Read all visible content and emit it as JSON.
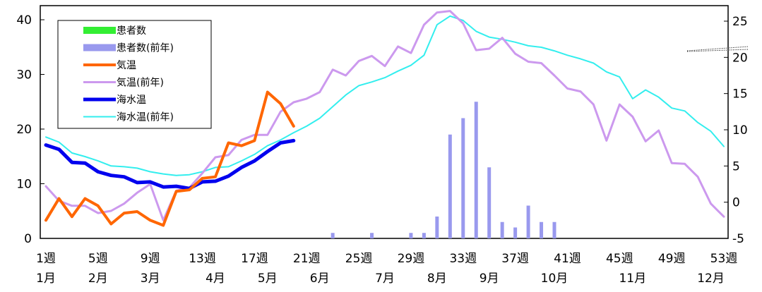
{
  "chart_data": {
    "type": "line",
    "x_ticks": [
      {
        "week": 1,
        "label": "1週"
      },
      {
        "week": 5,
        "label": "5週"
      },
      {
        "week": 9,
        "label": "9週"
      },
      {
        "week": 13,
        "label": "13週"
      },
      {
        "week": 17,
        "label": "17週"
      },
      {
        "week": 21,
        "label": "21週"
      },
      {
        "week": 25,
        "label": "25週"
      },
      {
        "week": 29,
        "label": "29週"
      },
      {
        "week": 33,
        "label": "33週"
      },
      {
        "week": 37,
        "label": "37週"
      },
      {
        "week": 41,
        "label": "41週"
      },
      {
        "week": 45,
        "label": "45週"
      },
      {
        "week": 49,
        "label": "49週"
      },
      {
        "week": 53,
        "label": "53週"
      }
    ],
    "month_labels": [
      {
        "week": 1,
        "label": "1月"
      },
      {
        "week": 5,
        "label": "2月"
      },
      {
        "week": 9,
        "label": "3月"
      },
      {
        "week": 14,
        "label": "4月"
      },
      {
        "week": 18,
        "label": "5月"
      },
      {
        "week": 22,
        "label": "6月"
      },
      {
        "week": 27,
        "label": "7月"
      },
      {
        "week": 31,
        "label": "8月"
      },
      {
        "week": 35,
        "label": "9月"
      },
      {
        "week": 40,
        "label": "10月"
      },
      {
        "week": 46,
        "label": "11月"
      },
      {
        "week": 52,
        "label": "12月"
      }
    ],
    "x_range": [
      1,
      53
    ],
    "y_left": {
      "range": [
        0,
        40
      ],
      "ticks": [
        "0",
        "10",
        "20",
        "30",
        "40"
      ]
    },
    "y_right": {
      "range": [
        -5,
        25
      ],
      "ticks": [
        "-5",
        "0",
        "5",
        "10",
        "15",
        "20",
        "25"
      ]
    },
    "legend": [
      "患者数",
      "患者数(前年)",
      "気温",
      "気温(前年)",
      "海水温",
      "海水温(前年)"
    ],
    "series": [
      {
        "name": "患者数",
        "kind": "bar",
        "axis": "left",
        "color": "#33ee33",
        "points": []
      },
      {
        "name": "患者数(前年)",
        "kind": "bar",
        "axis": "left",
        "color": "#9999ee",
        "points": [
          [
            23,
            1
          ],
          [
            26,
            1
          ],
          [
            29,
            1
          ],
          [
            30,
            1
          ],
          [
            31,
            4
          ],
          [
            32,
            19
          ],
          [
            33,
            22
          ],
          [
            34,
            25
          ],
          [
            35,
            13
          ],
          [
            36,
            3
          ],
          [
            37,
            2
          ],
          [
            38,
            6
          ],
          [
            39,
            3
          ],
          [
            40,
            3
          ]
        ]
      },
      {
        "name": "気温",
        "kind": "line",
        "axis": "right",
        "color": "#ff6600",
        "width": 4,
        "values": [
          -2.5,
          0.5,
          -2,
          0.5,
          -0.5,
          -3,
          -1.5,
          -1.3,
          -2.5,
          -3.2,
          1.5,
          1.7,
          3.3,
          3.5,
          8.2,
          7.8,
          8.5,
          15.2,
          13.6,
          10.5
        ]
      },
      {
        "name": "気温(前年)",
        "kind": "line",
        "axis": "right",
        "color": "#cc99ee",
        "width": 3,
        "values": [
          2.2,
          0.2,
          -0.5,
          -0.5,
          -1.5,
          -1.2,
          -0.2,
          1.3,
          2.5,
          -2.5,
          1.6,
          2,
          4,
          6.2,
          6.5,
          8.6,
          9.3,
          9.3,
          12.5,
          13.8,
          14.3,
          15.2,
          18.3,
          17.5,
          19.5,
          20.2,
          18.8,
          21.5,
          20.6,
          24.5,
          26.2,
          26.4,
          24.7,
          21,
          21.2,
          22.7,
          20.5,
          19.4,
          19.2,
          17.5,
          15.7,
          15.3,
          13.5,
          8.5,
          13.5,
          11.8,
          8.4,
          9.9,
          5.4,
          5.3,
          3.5,
          -0.2,
          -2
        ]
      },
      {
        "name": "海水温",
        "kind": "line",
        "axis": "right",
        "color": "#0000ee",
        "width": 5,
        "values": [
          7.9,
          7.3,
          5.5,
          5.4,
          4.2,
          3.7,
          3.5,
          2.7,
          2.8,
          2.1,
          2.2,
          1.9,
          2.8,
          2.9,
          3.6,
          4.8,
          5.7,
          7,
          8.2,
          8.5
        ]
      },
      {
        "name": "海水温(前年)",
        "kind": "line",
        "axis": "right",
        "color": "#33eeee",
        "width": 2,
        "values": [
          9,
          8.3,
          6.8,
          6.3,
          5.7,
          5,
          4.9,
          4.7,
          4.2,
          3.9,
          3.7,
          3.8,
          4.2,
          4.8,
          4.9,
          5.7,
          6.6,
          7.8,
          8.6,
          9.6,
          10.5,
          11.6,
          13.2,
          14.8,
          16.1,
          16.6,
          17.2,
          18.1,
          18.9,
          20.3,
          24.5,
          25.7,
          25.1,
          23.6,
          22.8,
          22.5,
          22.1,
          21.6,
          21.4,
          20.9,
          20.3,
          19.8,
          19.2,
          18,
          17.3,
          14.3,
          15.5,
          14.5,
          13,
          12.6,
          11,
          9.8,
          7.7
        ]
      }
    ]
  }
}
